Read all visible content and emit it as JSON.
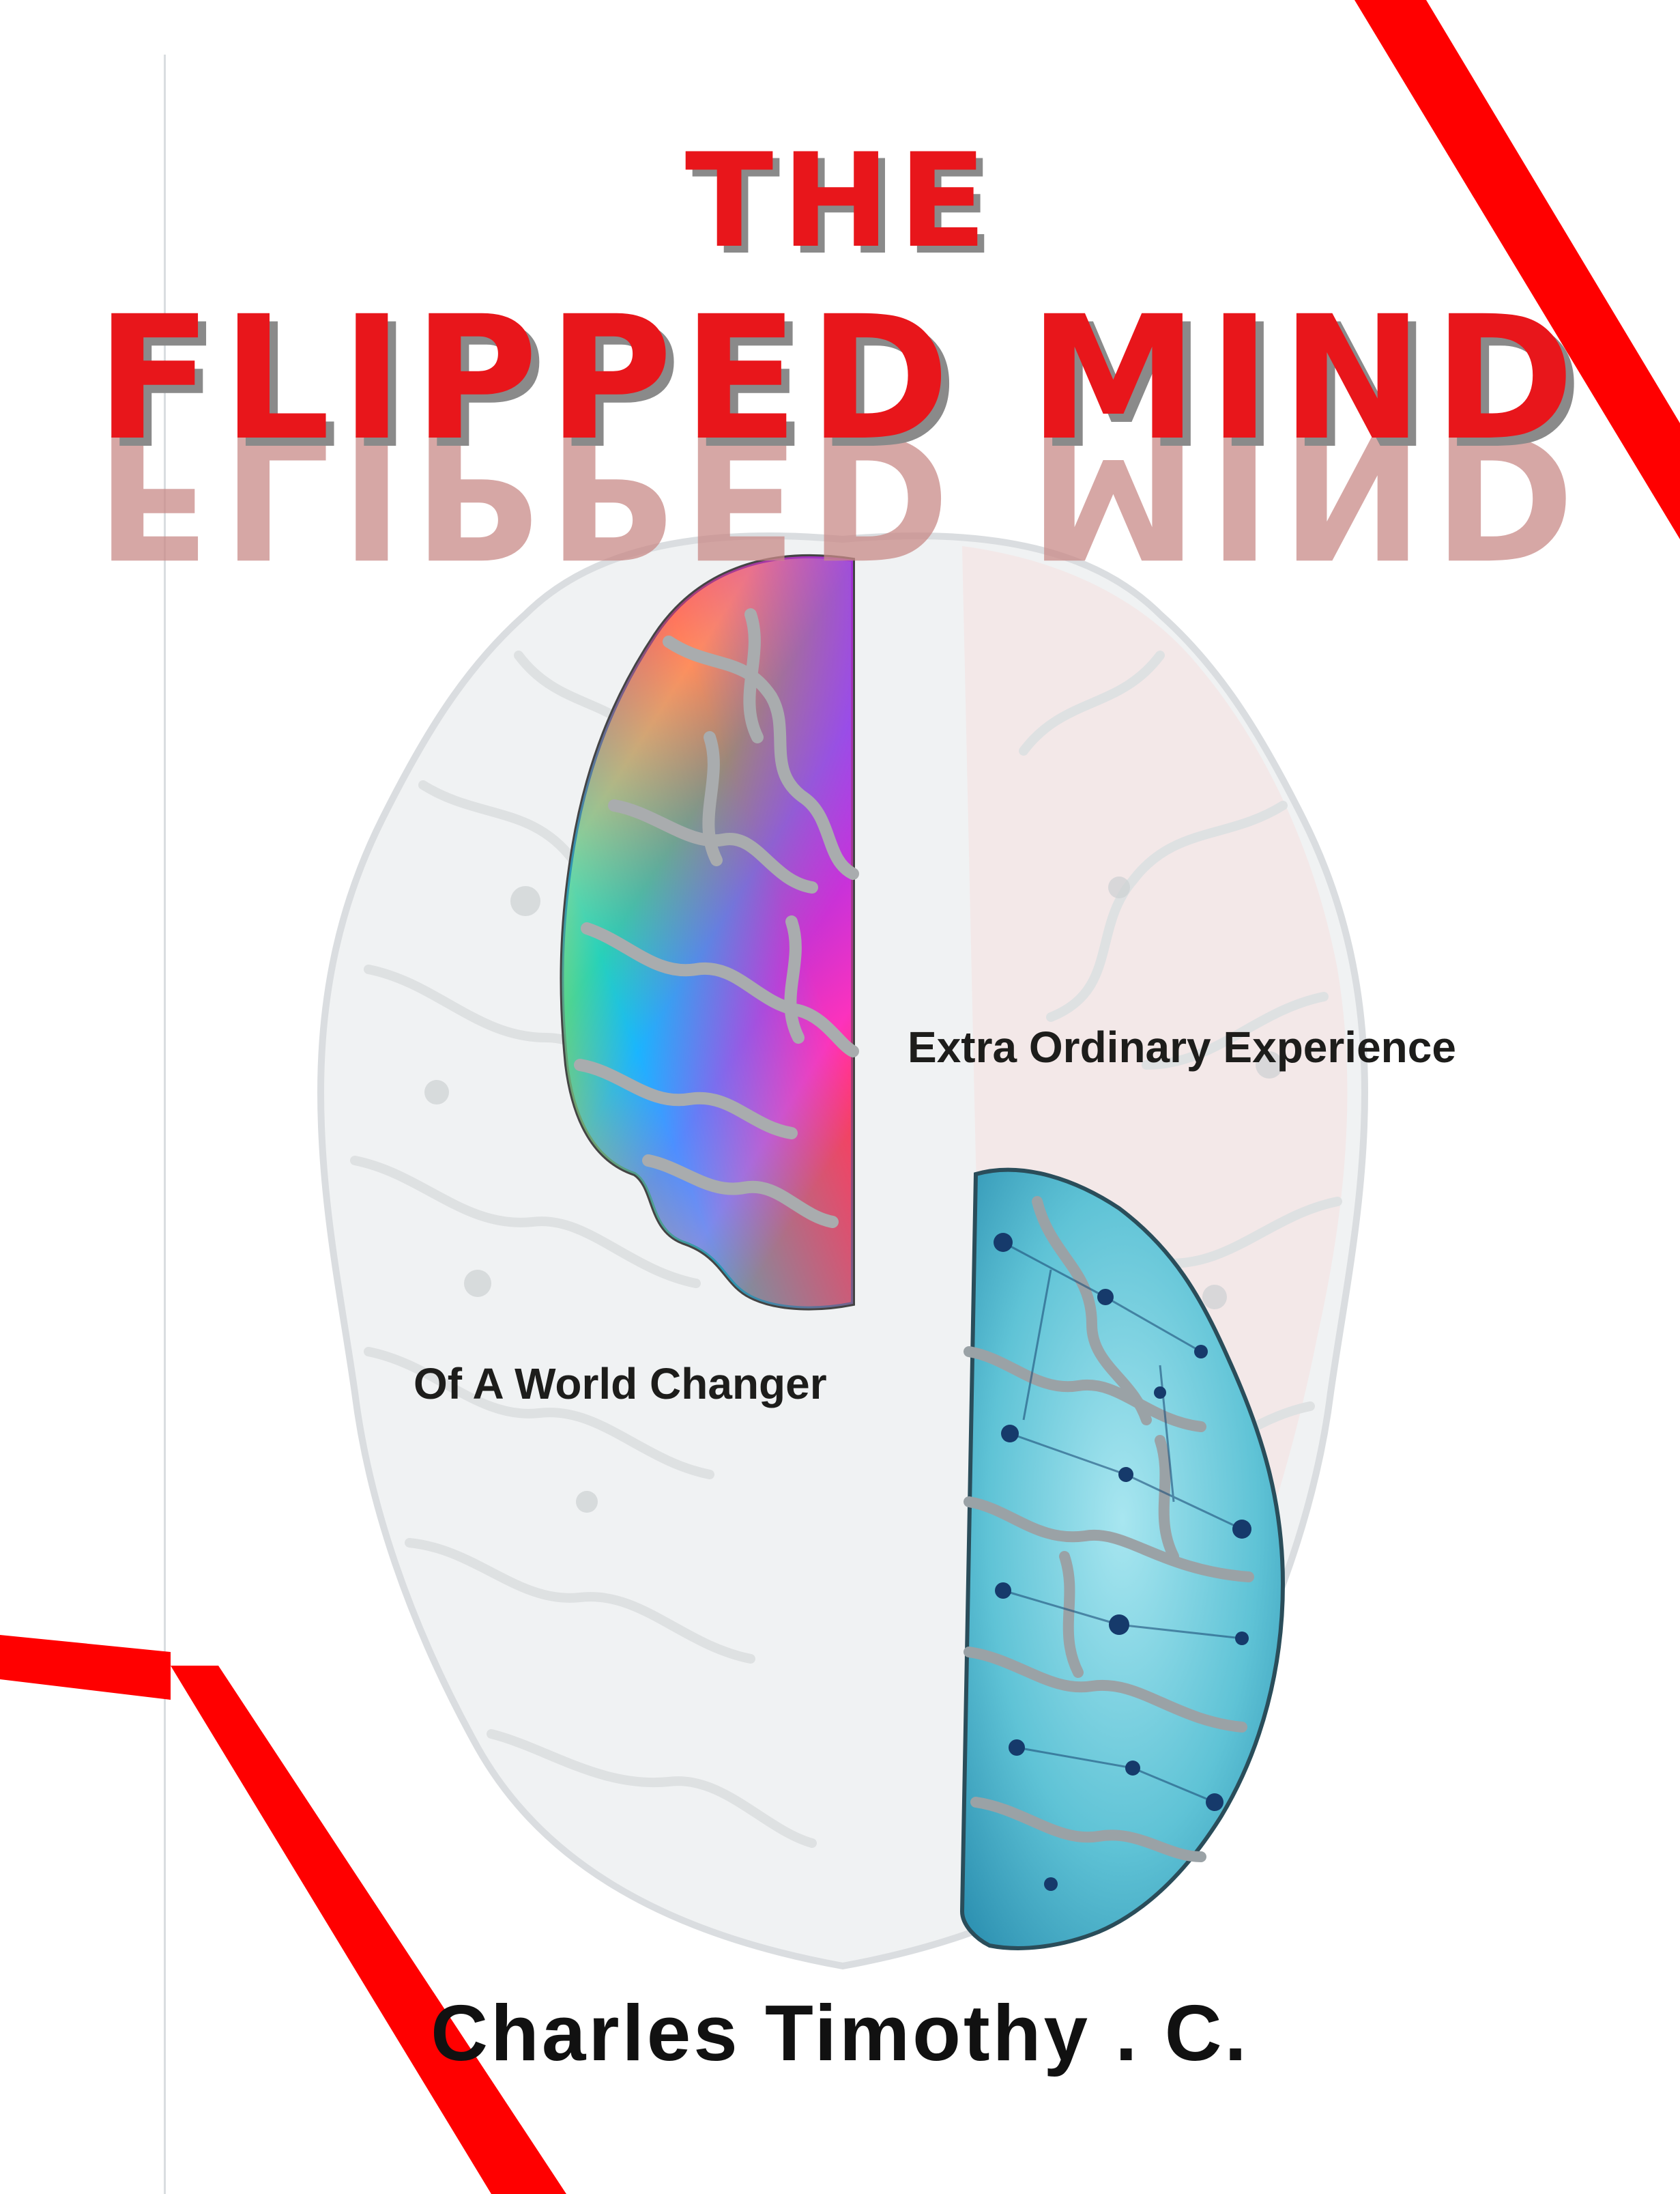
{
  "cover": {
    "title_top": "THE",
    "title_main": "FLIPPED MIND",
    "tagline_1": "Extra Ordinary Experience",
    "tagline_2": "Of A World Changer",
    "author": "Charles Timothy . C."
  },
  "colors": {
    "title_red": "#e8161b",
    "accent_stripe": "#ff0000",
    "shadow_gray": "#8a8a8a",
    "text_dark": "#1d1d1b",
    "ghost_brain": "#e6e8ea",
    "cyan_hemisphere": "#5fc3d6"
  },
  "illustration": {
    "subject": "brain-top-view-icon",
    "left_hemisphere": "multicolor",
    "right_hemisphere": "blue-network"
  }
}
